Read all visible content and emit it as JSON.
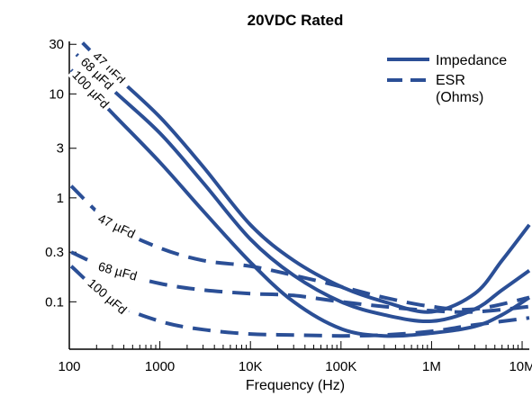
{
  "chart_data": {
    "type": "line",
    "title": "20VDC Rated",
    "xlabel": "Frequency (Hz)",
    "ylabel": "",
    "xscale": "log",
    "yscale": "log",
    "xlim": [
      100,
      12000000
    ],
    "ylim": [
      0.035,
      32
    ],
    "xticks": [
      {
        "value": 100,
        "label": "100"
      },
      {
        "value": 1000,
        "label": "1000"
      },
      {
        "value": 10000,
        "label": "10K"
      },
      {
        "value": 100000,
        "label": "100K"
      },
      {
        "value": 1000000,
        "label": "1M"
      },
      {
        "value": 10000000,
        "label": "10M"
      }
    ],
    "yticks": [
      {
        "value": 30,
        "label": "30"
      },
      {
        "value": 10,
        "label": "10"
      },
      {
        "value": 3,
        "label": "3"
      },
      {
        "value": 1,
        "label": "1"
      },
      {
        "value": 0.3,
        "label": "0.3"
      },
      {
        "value": 0.1,
        "label": "0.1"
      }
    ],
    "grid": false,
    "legend_position": "top-right",
    "legend": [
      {
        "label": "Impedance",
        "style": "solid"
      },
      {
        "label": "ESR\n(Ohms)",
        "style": "dashed"
      }
    ],
    "color": "#2b4f96",
    "series": [
      {
        "kind": "impedance",
        "curve_label": "47 µFd",
        "style": "solid",
        "x": [
          140,
          300,
          1000,
          3000,
          10000,
          30000,
          100000,
          300000,
          1000000,
          3000000,
          6000000,
          12000000
        ],
        "y": [
          31,
          16,
          6.0,
          2.0,
          0.55,
          0.25,
          0.14,
          0.1,
          0.08,
          0.12,
          0.25,
          0.55
        ]
      },
      {
        "kind": "impedance",
        "curve_label": "68 µFd",
        "style": "solid",
        "x": [
          120,
          300,
          1000,
          3000,
          10000,
          30000,
          100000,
          300000,
          1000000,
          3000000,
          6000000,
          12000000
        ],
        "y": [
          24,
          11,
          4.2,
          1.4,
          0.4,
          0.18,
          0.1,
          0.075,
          0.065,
          0.085,
          0.13,
          0.2
        ]
      },
      {
        "kind": "impedance",
        "curve_label": "100 µFd",
        "style": "solid",
        "x": [
          105,
          300,
          1000,
          3000,
          10000,
          30000,
          100000,
          300000,
          1000000,
          3000000,
          6000000,
          12000000
        ],
        "y": [
          17,
          6.5,
          2.2,
          0.75,
          0.24,
          0.1,
          0.055,
          0.047,
          0.05,
          0.058,
          0.075,
          0.11
        ]
      },
      {
        "kind": "esr",
        "curve_label": "47 µFd",
        "style": "dashed",
        "x": [
          105,
          300,
          1000,
          3000,
          10000,
          30000,
          100000,
          300000,
          1000000,
          3000000,
          12000000
        ],
        "y": [
          1.3,
          0.55,
          0.33,
          0.25,
          0.22,
          0.18,
          0.14,
          0.11,
          0.09,
          0.085,
          0.11
        ]
      },
      {
        "kind": "esr",
        "curve_label": "68 µFd",
        "style": "dashed",
        "x": [
          105,
          300,
          1000,
          3000,
          10000,
          30000,
          100000,
          300000,
          1000000,
          3000000,
          12000000
        ],
        "y": [
          0.3,
          0.2,
          0.15,
          0.13,
          0.12,
          0.115,
          0.1,
          0.09,
          0.082,
          0.08,
          0.09
        ]
      },
      {
        "kind": "esr",
        "curve_label": "100 µFd",
        "style": "dashed",
        "x": [
          105,
          300,
          1000,
          3000,
          10000,
          30000,
          100000,
          300000,
          1000000,
          3000000,
          12000000
        ],
        "y": [
          0.22,
          0.1,
          0.065,
          0.054,
          0.049,
          0.048,
          0.047,
          0.048,
          0.052,
          0.06,
          0.07
        ]
      }
    ]
  }
}
